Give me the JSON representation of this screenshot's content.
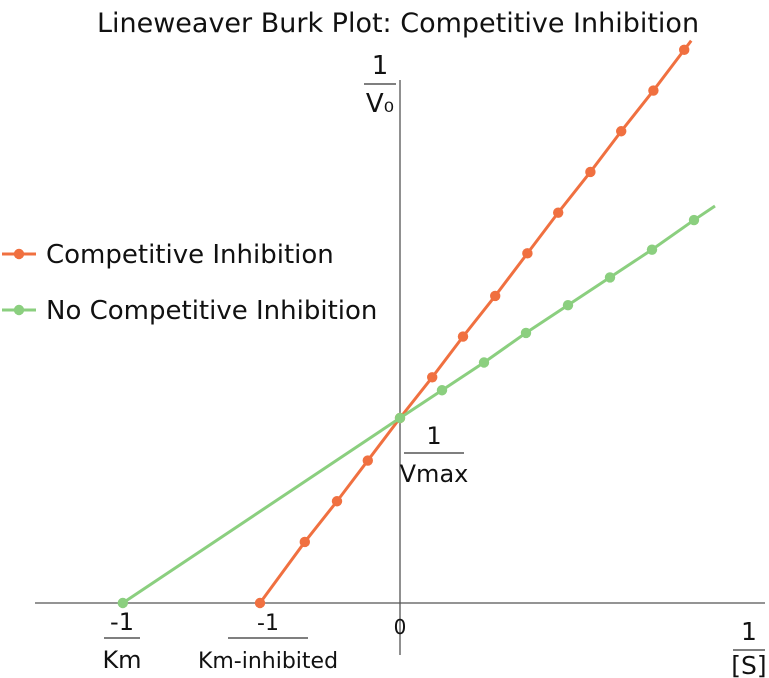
{
  "chart_data": {
    "type": "line",
    "title": "Lineweaver Burk Plot: Competitive Inhibition",
    "series": [
      {
        "name": "Competitive Inhibition",
        "color": "#f07040",
        "x": [
          -1.0,
          -0.68,
          -0.45,
          -0.23,
          0,
          0.23,
          0.45,
          0.68,
          0.91,
          1.13,
          1.36,
          1.58,
          1.81,
          2.03
        ],
        "y": [
          0.0,
          0.33,
          0.55,
          0.77,
          1.0,
          1.22,
          1.44,
          1.66,
          1.89,
          2.11,
          2.33,
          2.55,
          2.77,
          2.99
        ]
      },
      {
        "name": "No Competitive Inhibition",
        "color": "#8bcf7f",
        "x": [
          -1.98,
          0,
          0.3,
          0.6,
          0.9,
          1.2,
          1.5,
          1.8,
          2.1
        ],
        "y": [
          0.0,
          1.0,
          1.15,
          1.3,
          1.46,
          1.61,
          1.76,
          1.91,
          2.07
        ]
      }
    ],
    "axis_labels": {
      "y_numerator": "1",
      "y_denominator": "V₀",
      "x_numerator": "1",
      "x_denominator": "[S]",
      "intercept_numerator": "1",
      "intercept_denominator": "Vmax",
      "km_numerator": "-1",
      "km_denominator": "Km",
      "km_inhibited_numerator": "-1",
      "km_inhibited_denominator": "Km-inhibited",
      "origin": "0"
    },
    "legend": {
      "placement": "left"
    },
    "grid": false
  }
}
